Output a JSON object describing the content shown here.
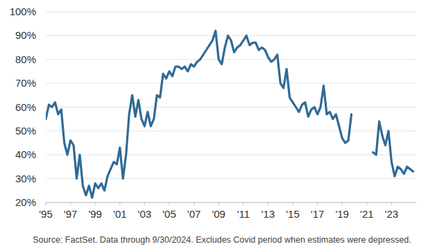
{
  "chart_data": {
    "type": "line",
    "source": "Source: FactSet.  Data through 9/30/2024.  Excludes Covid period when estimates were depressed.",
    "color": "#2e6a96",
    "grid": true,
    "xlim": [
      1995,
      2025
    ],
    "ylim": [
      20,
      100
    ],
    "xticks": [
      {
        "value": 1995,
        "label": "'95"
      },
      {
        "value": 1997,
        "label": "'97"
      },
      {
        "value": 1999,
        "label": "'99"
      },
      {
        "value": 2001,
        "label": "'01"
      },
      {
        "value": 2003,
        "label": "'03"
      },
      {
        "value": 2005,
        "label": "'05"
      },
      {
        "value": 2007,
        "label": "'07"
      },
      {
        "value": 2009,
        "label": "'09"
      },
      {
        "value": 2011,
        "label": "'11"
      },
      {
        "value": 2013,
        "label": "'13"
      },
      {
        "value": 2015,
        "label": "'15"
      },
      {
        "value": 2017,
        "label": "'17"
      },
      {
        "value": 2019,
        "label": "'19"
      },
      {
        "value": 2021,
        "label": "'21"
      },
      {
        "value": 2023,
        "label": "'23"
      }
    ],
    "yticks": [
      {
        "value": 20,
        "label": "20%"
      },
      {
        "value": 30,
        "label": "30%"
      },
      {
        "value": 40,
        "label": "40%"
      },
      {
        "value": 50,
        "label": "50%"
      },
      {
        "value": 60,
        "label": "60%"
      },
      {
        "value": 70,
        "label": "70%"
      },
      {
        "value": 80,
        "label": "80%"
      },
      {
        "value": 90,
        "label": "90%"
      },
      {
        "value": 100,
        "label": "100%"
      }
    ],
    "x": [
      1995,
      1995.25,
      1995.5,
      1995.75,
      1996,
      1996.25,
      1996.5,
      1996.75,
      1997,
      1997.25,
      1997.5,
      1997.75,
      1998,
      1998.25,
      1998.5,
      1998.75,
      1999,
      1999.25,
      1999.5,
      1999.75,
      2000,
      2000.25,
      2000.5,
      2000.75,
      2001,
      2001.25,
      2001.5,
      2001.75,
      2002,
      2002.25,
      2002.5,
      2002.75,
      2003,
      2003.25,
      2003.5,
      2003.75,
      2004,
      2004.25,
      2004.5,
      2004.75,
      2005,
      2005.25,
      2005.5,
      2005.75,
      2006,
      2006.25,
      2006.5,
      2006.75,
      2007,
      2007.25,
      2007.5,
      2007.75,
      2008,
      2008.25,
      2008.5,
      2008.75,
      2009,
      2009.25,
      2009.5,
      2009.75,
      2010,
      2010.25,
      2010.5,
      2010.75,
      2011,
      2011.25,
      2011.5,
      2011.75,
      2012,
      2012.25,
      2012.5,
      2012.75,
      2013,
      2013.25,
      2013.5,
      2013.75,
      2014,
      2014.25,
      2014.5,
      2014.75,
      2015,
      2015.25,
      2015.5,
      2015.75,
      2016,
      2016.25,
      2016.5,
      2016.75,
      2017,
      2017.25,
      2017.5,
      2017.75,
      2018,
      2018.25,
      2018.5,
      2018.75,
      2019,
      2019.25,
      2019.5,
      2019.75,
      2020,
      2020.25,
      2020.5,
      2020.75,
      2021,
      2021.25,
      2021.5,
      2021.75,
      2022,
      2022.25,
      2022.5,
      2022.75,
      2023,
      2023.25,
      2023.5,
      2023.75,
      2024,
      2024.25,
      2024.5,
      2024.75
    ],
    "values": [
      55,
      61,
      60,
      62,
      57,
      59,
      45,
      40,
      46,
      44,
      30,
      40,
      27,
      23,
      27,
      22,
      28,
      26,
      28,
      25,
      31,
      34,
      37,
      36,
      43,
      30,
      40,
      57,
      65,
      56,
      63,
      55,
      52,
      58,
      52,
      55,
      65,
      64,
      74,
      72,
      75,
      73,
      77,
      77,
      76,
      77,
      75,
      78,
      77,
      79,
      80,
      82,
      84,
      86,
      88,
      92,
      80,
      78,
      85,
      90,
      88,
      83,
      85,
      86,
      88,
      90,
      86,
      87,
      87,
      84,
      85,
      84,
      81,
      79,
      80,
      82,
      70,
      68,
      76,
      64,
      62,
      60,
      58,
      61,
      62,
      56,
      59,
      60,
      57,
      60,
      69,
      57,
      58,
      55,
      57,
      52,
      47,
      45,
      46,
      57,
      null,
      null,
      null,
      null,
      null,
      null,
      41,
      40,
      54,
      48,
      44,
      50,
      37,
      31,
      35,
      34,
      32,
      35,
      34,
      33
    ]
  }
}
